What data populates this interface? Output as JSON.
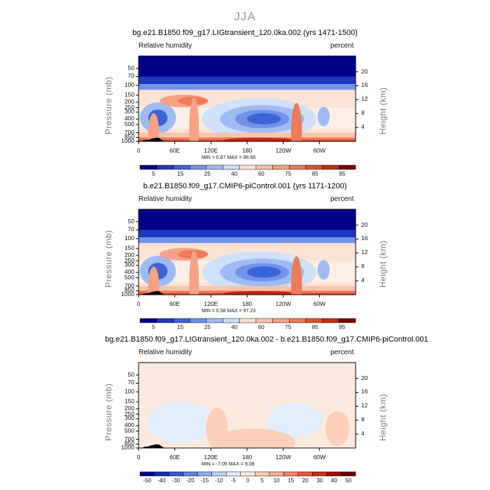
{
  "title": "JJA",
  "colors": {
    "abs_scale": [
      "#00008b",
      "#1d39c4",
      "#3d63d8",
      "#6f93e8",
      "#9fbcf2",
      "#cfe0fa",
      "#fde3d5",
      "#fbc4a9",
      "#f6a284",
      "#ee7a59",
      "#df4f30",
      "#c0290f",
      "#7a0000"
    ],
    "diff_scale": [
      "#00008b",
      "#102fb0",
      "#2d58cf",
      "#5d86e3",
      "#8db0ef",
      "#bcd3f8",
      "#e3eefd",
      "#fdeade",
      "#fccfb8",
      "#f7ae8f",
      "#ef8563",
      "#e05b3a",
      "#c73216",
      "#9e1004",
      "#6a0000"
    ]
  },
  "chart_data": [
    {
      "type": "heatmap",
      "title": "bg.e21.B1850.f09_g17.LIGtransient_120.0ka.002 (yrs 1471-1500)",
      "left_label": "Relative humidity",
      "right_label": "percent",
      "ylabel": "Pressure (mb)",
      "y2label": "Height (km)",
      "y_ticks": [
        "50",
        "70",
        "100",
        "150",
        "200",
        "250",
        "300",
        "400",
        "500",
        "700",
        "850",
        "1000"
      ],
      "y_tick_values": [
        50,
        70,
        100,
        150,
        200,
        250,
        300,
        400,
        500,
        700,
        850,
        1000
      ],
      "y2_ticks": [
        "20",
        "16",
        "12",
        "8",
        "4"
      ],
      "y2_tick_values": [
        20,
        16,
        12,
        8,
        4
      ],
      "x_ticks": [
        "0",
        "60E",
        "120E",
        "180",
        "120W",
        "60W"
      ],
      "x_tick_values": [
        0,
        60,
        120,
        180,
        240,
        300
      ],
      "xlim": [
        0,
        360
      ],
      "ylim": [
        1000,
        30
      ],
      "stats": "MIN =    0.67   MAX =   96.66",
      "colorbar_labels": [
        "5",
        "15",
        "25",
        "40",
        "60",
        "75",
        "85",
        "95"
      ],
      "contour_levels": [
        5,
        10,
        15,
        20,
        25,
        30,
        40,
        50,
        60,
        70,
        75,
        80,
        85,
        90,
        95
      ],
      "scale": "abs"
    },
    {
      "type": "heatmap",
      "title": "b.e21.B1850.f09_g17.CMIP6-piControl.001 (yrs 1171-1200)",
      "left_label": "Relative humidity",
      "right_label": "percent",
      "ylabel": "Pressure (mb)",
      "y2label": "Height (km)",
      "y_ticks": [
        "50",
        "70",
        "100",
        "150",
        "200",
        "250",
        "300",
        "400",
        "500",
        "700",
        "850",
        "1000"
      ],
      "y_tick_values": [
        50,
        70,
        100,
        150,
        200,
        250,
        300,
        400,
        500,
        700,
        850,
        1000
      ],
      "y2_ticks": [
        "20",
        "16",
        "12",
        "8",
        "4"
      ],
      "y2_tick_values": [
        20,
        16,
        12,
        8,
        4
      ],
      "x_ticks": [
        "0",
        "60E",
        "120E",
        "180",
        "120W",
        "60W"
      ],
      "x_tick_values": [
        0,
        60,
        120,
        180,
        240,
        300
      ],
      "xlim": [
        0,
        360
      ],
      "ylim": [
        1000,
        30
      ],
      "stats": "MIN =    0.58   MAX =   97.23",
      "colorbar_labels": [
        "5",
        "15",
        "25",
        "40",
        "60",
        "75",
        "85",
        "95"
      ],
      "contour_levels": [
        5,
        10,
        15,
        20,
        25,
        30,
        40,
        50,
        60,
        70,
        75,
        80,
        85,
        90,
        95
      ],
      "scale": "abs"
    },
    {
      "type": "heatmap",
      "title": "bg.e21.B1850.f09_g17.LIGtransient_120.0ka.002 - b.e21.B1850.f09_g17.CMIP6-piControl.001",
      "left_label": "Relative humidity",
      "right_label": "percent",
      "ylabel": "Pressure (mb)",
      "y2label": "Height (km)",
      "y_ticks": [
        "50",
        "70",
        "100",
        "150",
        "200",
        "250",
        "300",
        "400",
        "500",
        "700",
        "850",
        "1000"
      ],
      "y_tick_values": [
        50,
        70,
        100,
        150,
        200,
        250,
        300,
        400,
        500,
        700,
        850,
        1000
      ],
      "y2_ticks": [
        "20",
        "16",
        "12",
        "8",
        "4"
      ],
      "y2_tick_values": [
        20,
        16,
        12,
        8,
        4
      ],
      "x_ticks": [
        "0",
        "60E",
        "120E",
        "180",
        "120W",
        "60W"
      ],
      "x_tick_values": [
        0,
        60,
        120,
        180,
        240,
        300
      ],
      "xlim": [
        0,
        360
      ],
      "ylim": [
        1000,
        30
      ],
      "stats": "MIN =  -7.05   MAX =    9.08",
      "colorbar_labels": [
        "-50",
        "-40",
        "-30",
        "-20",
        "-15",
        "-10",
        "-5",
        "0",
        "5",
        "10",
        "15",
        "20",
        "30",
        "40",
        "50"
      ],
      "contour_levels": [
        -50,
        -40,
        -30,
        -20,
        -15,
        -10,
        -5,
        0,
        5,
        10,
        15,
        20,
        30,
        40,
        50
      ],
      "scale": "diff"
    }
  ]
}
